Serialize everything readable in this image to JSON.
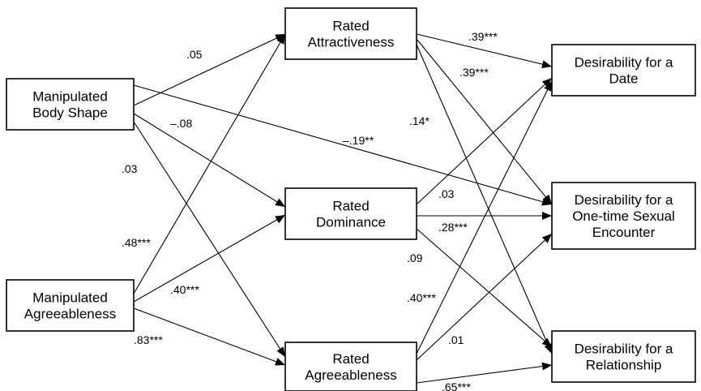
{
  "nodes": {
    "body_shape": {
      "lines": [
        "Manipulated",
        "Body Shape"
      ]
    },
    "agreeableness": {
      "lines": [
        "Manipulated",
        "Agreeableness"
      ]
    },
    "rated_attr": {
      "lines": [
        "Rated",
        "Attractiveness"
      ]
    },
    "rated_dom": {
      "lines": [
        "Rated",
        "Dominance"
      ]
    },
    "rated_agree": {
      "lines": [
        "Rated",
        "Agreeableness"
      ]
    },
    "date": {
      "lines": [
        "Desirability for a",
        "Date"
      ]
    },
    "sexual": {
      "lines": [
        "Desirability for a",
        "One-time Sexual",
        "Encounter"
      ]
    },
    "relationship": {
      "lines": [
        "Desirability for a",
        "Relationship"
      ]
    }
  },
  "edges": [
    {
      "from": "body_shape",
      "to": "rated_attr",
      "label": ".05"
    },
    {
      "from": "body_shape",
      "to": "rated_dom",
      "label": "–.08"
    },
    {
      "from": "body_shape",
      "to": "rated_agree",
      "label": ".03"
    },
    {
      "from": "body_shape",
      "to": "sexual",
      "label": "–.19**"
    },
    {
      "from": "agreeableness",
      "to": "rated_attr",
      "label": ".48***"
    },
    {
      "from": "agreeableness",
      "to": "rated_dom",
      "label": ".40***"
    },
    {
      "from": "agreeableness",
      "to": "rated_agree",
      "label": ".83***"
    },
    {
      "from": "rated_attr",
      "to": "date",
      "label": ".39***"
    },
    {
      "from": "rated_attr",
      "to": "sexual",
      "label": ".39***"
    },
    {
      "from": "rated_attr",
      "to": "relationship",
      "label": ".14*"
    },
    {
      "from": "rated_dom",
      "to": "date",
      "label": ".03"
    },
    {
      "from": "rated_dom",
      "to": "sexual",
      "label": ".28***"
    },
    {
      "from": "rated_dom",
      "to": "relationship",
      "label": ".09"
    },
    {
      "from": "rated_agree",
      "to": "date",
      "label": ".40***"
    },
    {
      "from": "rated_agree",
      "to": "sexual",
      "label": ".01"
    },
    {
      "from": "rated_agree",
      "to": "relationship",
      "label": ".65***"
    }
  ]
}
